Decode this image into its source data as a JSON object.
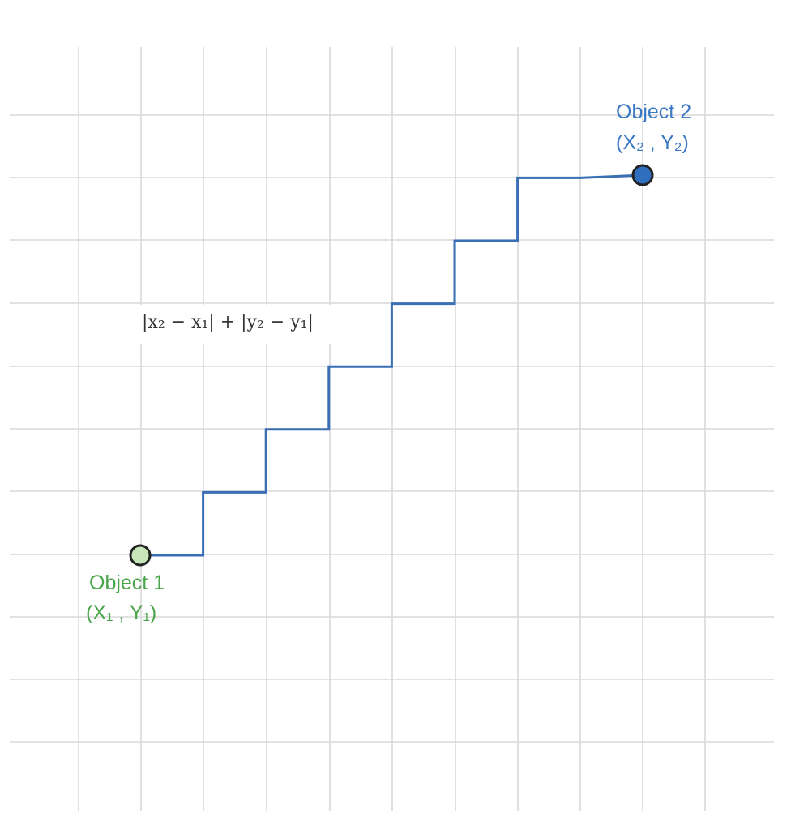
{
  "colors": {
    "path": "#3a6fb5",
    "object1_fill": "#c8e6b8",
    "object1_text": "#4aa54a",
    "object2_fill": "#2f6fc0",
    "object2_text": "#3a78c4",
    "grid": "#d9d9d9"
  },
  "formula": {
    "text": "|x₂ − x₁| + |y₂ − y₁|"
  },
  "object1": {
    "name": "Object 1",
    "coords": "(X₁ , Y₁)"
  },
  "object2": {
    "name": "Object 2",
    "coords": "(X₂ , Y₂)"
  },
  "path_steps": {
    "right_steps": 8,
    "up_steps": 6,
    "sequence": [
      "R",
      "U",
      "R",
      "U",
      "R",
      "U",
      "R",
      "U",
      "R",
      "U",
      "R",
      "U",
      "R",
      "R"
    ]
  }
}
